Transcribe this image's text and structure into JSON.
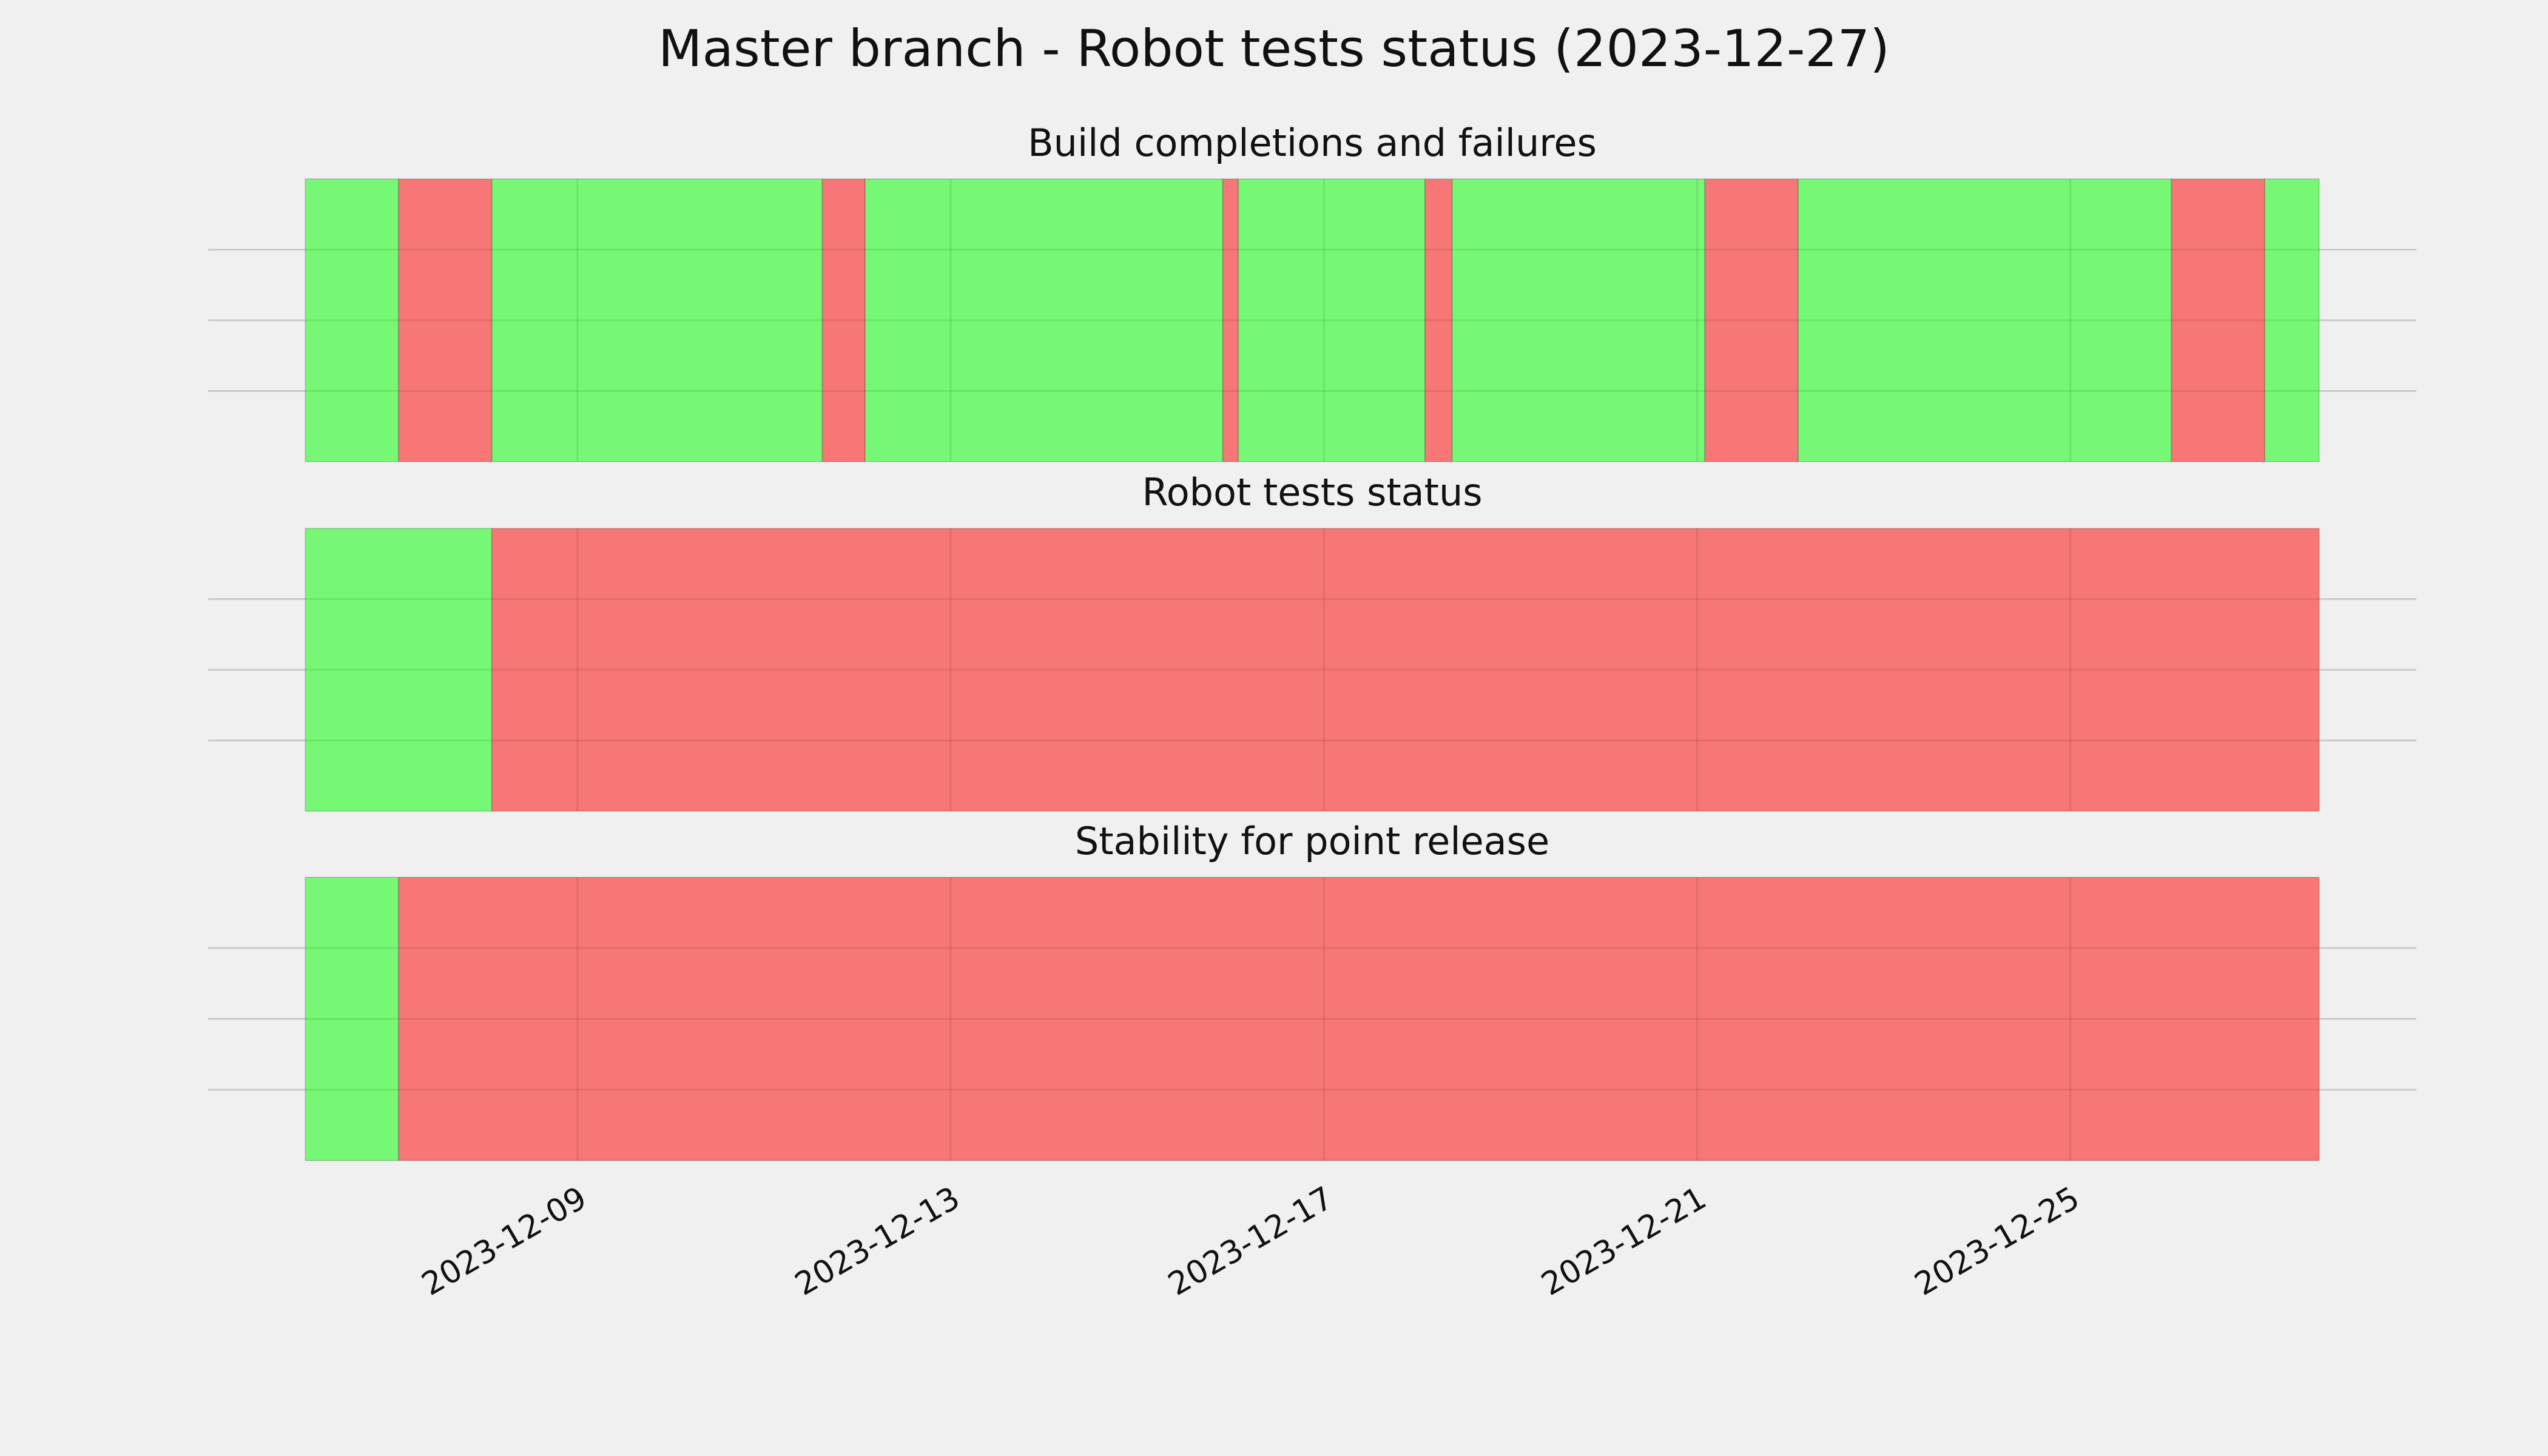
{
  "title": "Master branch - Robot tests status (2023-12-27)",
  "chart_data": [
    {
      "type": "timeline",
      "title": "Build completions and failures",
      "bins": [
        "2023-12-06 02:00",
        "2023-12-07 02:00",
        "2023-12-08 02:00",
        "2023-12-11 15:00",
        "2023-12-12 02:00",
        "2023-12-15 22:00",
        "2023-12-16 02:00",
        "2023-12-18 02:00",
        "2023-12-18 09:00",
        "2023-12-21 02:00",
        "2023-12-22 02:00",
        "2023-12-26 02:00",
        "2023-12-27 02:00",
        "2023-12-27 16:00"
      ],
      "colors": [
        "#76f776",
        "#f77676",
        "#76f776",
        "#f77676",
        "#76f776",
        "#f77676",
        "#76f776",
        "#f77676",
        "#76f776",
        "#f77676",
        "#76f776",
        "#f77676",
        "#76f776"
      ],
      "xlim": [
        "2023-12-05 01:00",
        "2023-12-28 17:00"
      ],
      "xticks": [
        "2023-12-09",
        "2023-12-13",
        "2023-12-17",
        "2023-12-21",
        "2023-12-25"
      ],
      "ylim": [
        0,
        1
      ],
      "yticks": [
        0.25,
        0.5,
        0.75
      ],
      "grid": true
    },
    {
      "type": "timeline",
      "title": "Robot tests status",
      "bins": [
        "2023-12-06 02:00",
        "2023-12-08 02:00",
        "2023-12-27 16:00"
      ],
      "colors": [
        "#76f776",
        "#f77676"
      ],
      "xlim": [
        "2023-12-05 01:00",
        "2023-12-28 17:00"
      ],
      "xticks": [
        "2023-12-09",
        "2023-12-13",
        "2023-12-17",
        "2023-12-21",
        "2023-12-25"
      ],
      "ylim": [
        0,
        1
      ],
      "yticks": [
        0.25,
        0.5,
        0.75
      ],
      "grid": true
    },
    {
      "type": "timeline",
      "title": "Stability for point release",
      "bins": [
        "2023-12-06 02:00",
        "2023-12-07 02:00",
        "2023-12-27 16:00"
      ],
      "colors": [
        "#76f776",
        "#f77676"
      ],
      "xlim": [
        "2023-12-05 01:00",
        "2023-12-28 17:00"
      ],
      "xticks": [
        "2023-12-09",
        "2023-12-13",
        "2023-12-17",
        "2023-12-21",
        "2023-12-25"
      ],
      "ylim": [
        0,
        1
      ],
      "yticks": [
        0.25,
        0.5,
        0.75
      ],
      "grid": true
    }
  ]
}
